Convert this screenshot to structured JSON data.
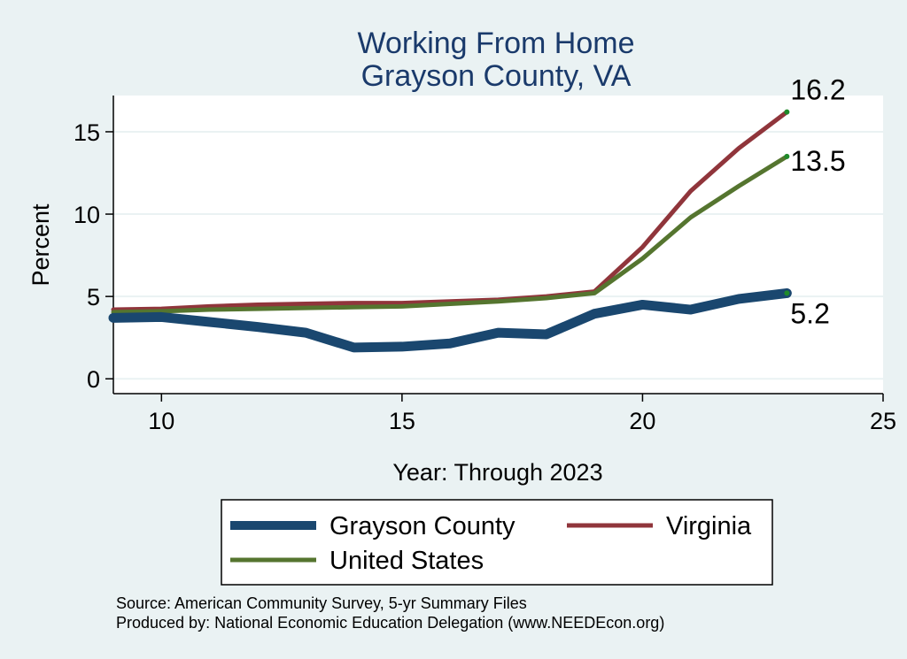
{
  "chart_data": {
    "type": "line",
    "title": "Working From Home",
    "subtitle": "Grayson County, VA",
    "xlabel": "Year: Through 2023",
    "ylabel": "Percent",
    "xlim": [
      9,
      25
    ],
    "ylim": [
      -0.9,
      17.2
    ],
    "xticks": [
      10,
      15,
      20,
      25
    ],
    "yticks": [
      0,
      5,
      10,
      15
    ],
    "grid": true,
    "legend_position": "bottom",
    "x": [
      9,
      10,
      11,
      12,
      13,
      14,
      15,
      16,
      17,
      18,
      19,
      20,
      21,
      22,
      23
    ],
    "series": [
      {
        "name": "Grayson County",
        "color": "#1a476f",
        "values": [
          3.7,
          3.75,
          3.45,
          3.15,
          2.8,
          1.9,
          1.95,
          2.15,
          2.8,
          2.7,
          3.95,
          4.5,
          4.2,
          4.85,
          5.2
        ],
        "end_label": "5.2"
      },
      {
        "name": "Virginia",
        "color": "#90353b",
        "values": [
          4.2,
          4.25,
          4.4,
          4.5,
          4.55,
          4.6,
          4.6,
          4.7,
          4.8,
          5.0,
          5.3,
          8.0,
          11.4,
          14.0,
          16.2
        ],
        "end_label": "16.2"
      },
      {
        "name": "United States",
        "color": "#55752f",
        "values": [
          4.05,
          4.1,
          4.2,
          4.25,
          4.3,
          4.35,
          4.4,
          4.55,
          4.7,
          4.9,
          5.2,
          7.3,
          9.8,
          11.7,
          13.5
        ],
        "end_label": "13.5"
      }
    ]
  },
  "notes": {
    "source": "Source: American Community Survey, 5-yr Summary Files",
    "produced": "Produced by: National Economic Education Delegation (www.NEEDEcon.org)"
  }
}
